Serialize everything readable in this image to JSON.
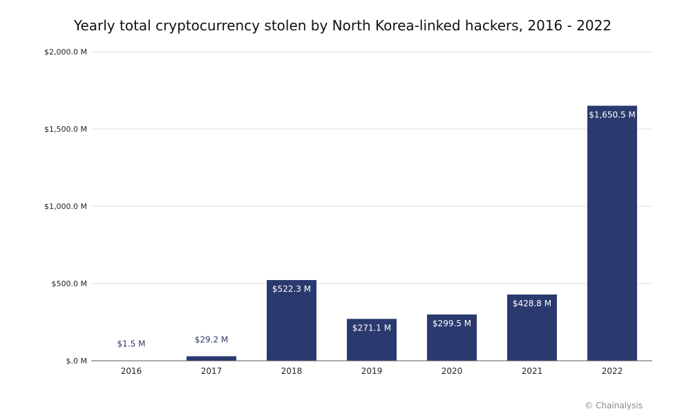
{
  "chart_data": {
    "type": "bar",
    "title": "Yearly total cryptocurrency stolen by North Korea-linked hackers, 2016 - 2022",
    "xlabel": "",
    "ylabel": "",
    "categories": [
      "2016",
      "2017",
      "2018",
      "2019",
      "2020",
      "2021",
      "2022"
    ],
    "values": [
      1.5,
      29.2,
      522.3,
      271.1,
      299.5,
      428.8,
      1650.5
    ],
    "data_labels": [
      "$1.5 M",
      "$29.2 M",
      "$522.3 M",
      "$271.1 M",
      "$299.5 M",
      "$428.8 M",
      "$1,650.5 M"
    ],
    "ylim": [
      0,
      2000
    ],
    "yticks": [
      0,
      500,
      1000,
      1500,
      2000
    ],
    "ytick_labels": [
      "$.0 M",
      "$500.0 M",
      "$1,000.0 M",
      "$1,500.0 M",
      "$2,000.0 M"
    ],
    "grid": true,
    "bar_color": "#2b3a6e",
    "legend": "none"
  },
  "source_credit": "© Chainalysis"
}
